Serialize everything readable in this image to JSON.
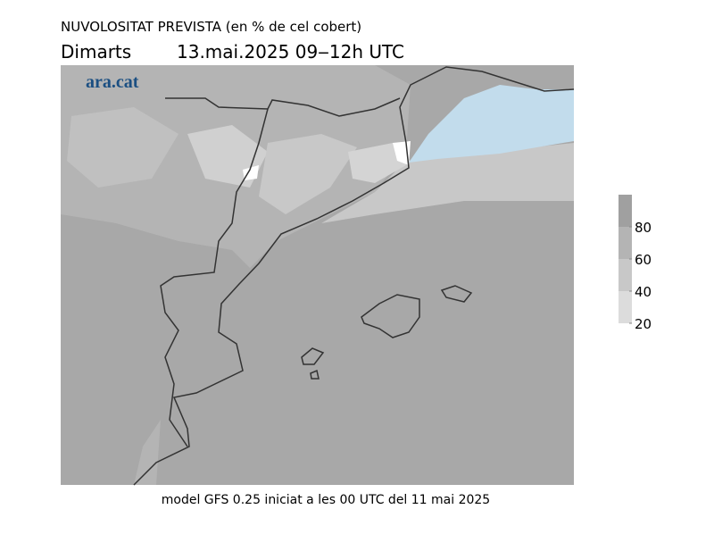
{
  "header": {
    "title": "NUVOLOSITAT PREVISTA (en % de cel cobert)",
    "day": "Dimarts",
    "date": "13.mai.2025 09‒12h UTC"
  },
  "map": {
    "logo": "ara.cat"
  },
  "colorbar": {
    "lim": [
      20,
      100
    ],
    "ticks": [
      20,
      40,
      60,
      80
    ],
    "colors": [
      "#dcdcdc",
      "#c8c8c8",
      "#b4b4b4",
      "#a0a0a0"
    ]
  },
  "footer": "model GFS 0.25 iniciat a les 00 UTC del 11 mai 2025"
}
